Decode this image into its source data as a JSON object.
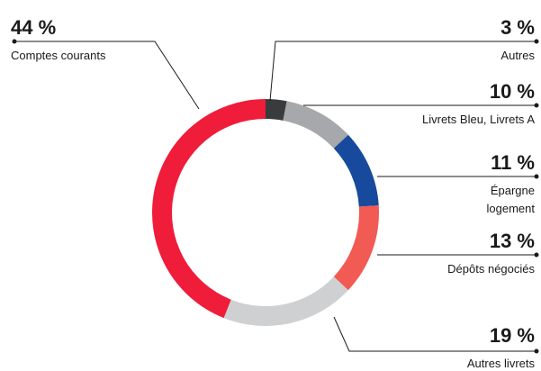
{
  "chart_data": {
    "type": "pie",
    "variant": "donut",
    "unit": "%",
    "slices": [
      {
        "label": "Autres",
        "value": 3,
        "display": "3 %",
        "color": "#3a3b3d"
      },
      {
        "label": "Livrets Bleu, Livrets A",
        "value": 10,
        "display": "10 %",
        "color": "#a6a8ab"
      },
      {
        "label": "Épargne logement",
        "label_lines": [
          "Épargne",
          "logement"
        ],
        "value": 11,
        "display": "11 %",
        "color": "#174a9c"
      },
      {
        "label": "Dépôts négociés",
        "value": 13,
        "display": "13 %",
        "color": "#f25a54"
      },
      {
        "label": "Autres livrets",
        "value": 19,
        "display": "19 %",
        "color": "#cfd0d2"
      },
      {
        "label": "Comptes courants",
        "value": 44,
        "display": "44 %",
        "color": "#ef1c3a"
      }
    ]
  }
}
